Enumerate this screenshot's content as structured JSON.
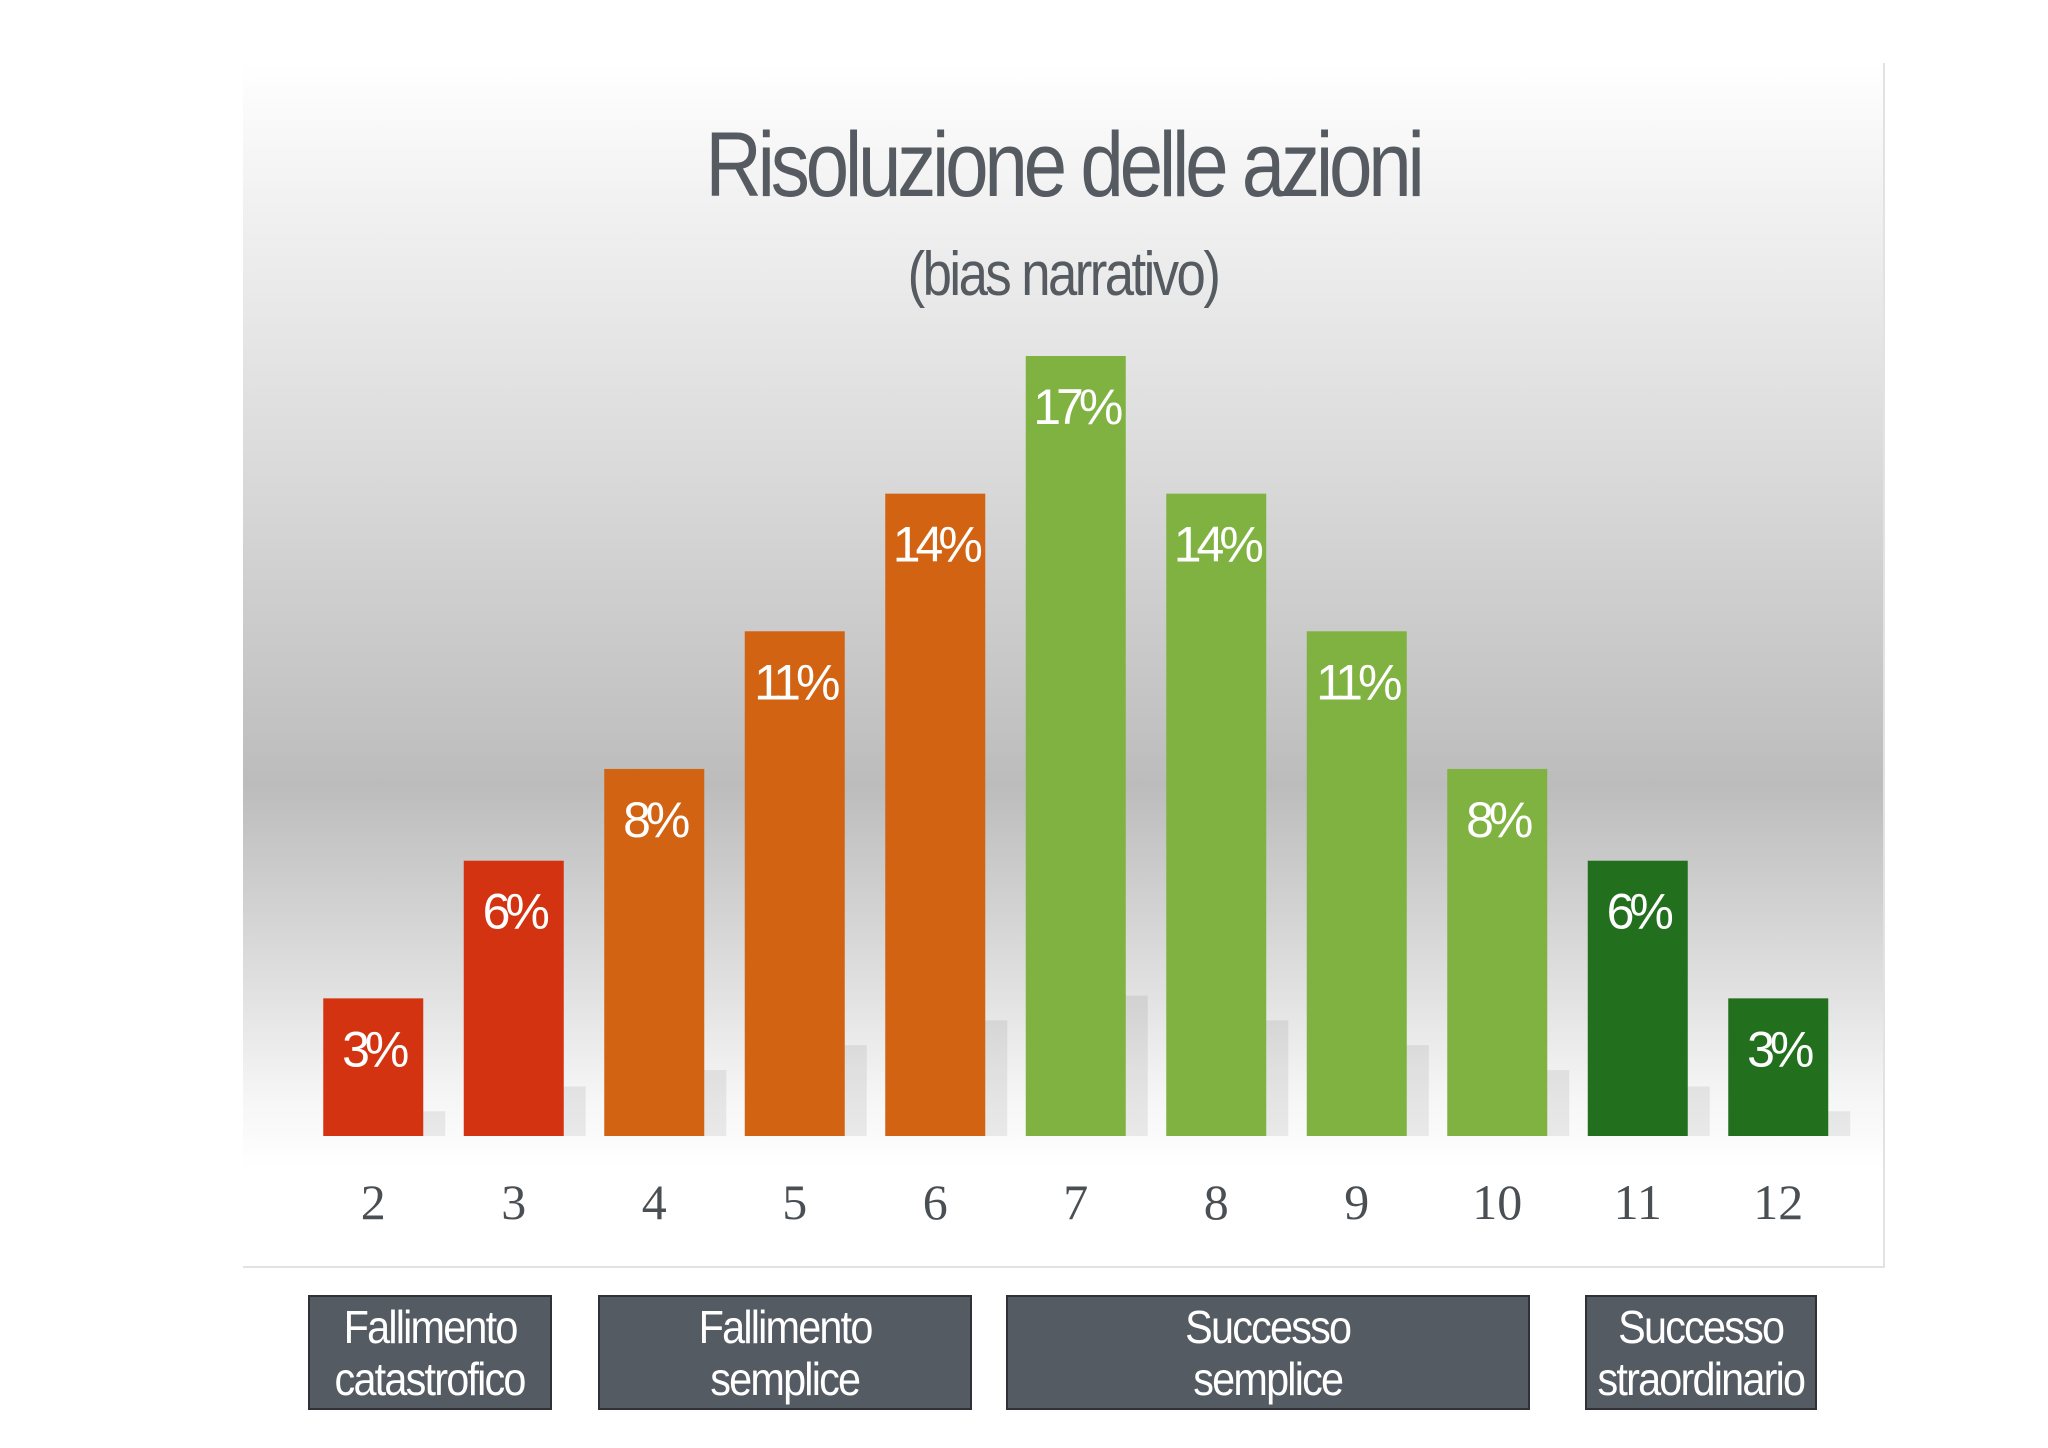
{
  "chart_data": {
    "type": "bar",
    "title": "Risoluzione delle azioni",
    "subtitle": "(bias narrativo)",
    "categories": [
      "2",
      "3",
      "4",
      "5",
      "6",
      "7",
      "8",
      "9",
      "10",
      "11",
      "12"
    ],
    "values": [
      3,
      6,
      8,
      11,
      14,
      17,
      14,
      11,
      8,
      6,
      3
    ],
    "value_labels": [
      "3%",
      "6%",
      "8%",
      "11%",
      "14%",
      "17%",
      "14%",
      "11%",
      "8%",
      "6%",
      "3%"
    ],
    "unit": "%",
    "bar_colors": [
      "#d43311",
      "#d43311",
      "#d26312",
      "#d26312",
      "#d26312",
      "#7fb241",
      "#7fb241",
      "#7fb241",
      "#7fb241",
      "#22701d",
      "#22701d"
    ],
    "ylim": [
      0,
      17
    ],
    "grid": false,
    "legend": "none"
  },
  "outcome_groups": [
    {
      "line1": "Fallimento",
      "line2": "catastrofico",
      "color": "#555b63"
    },
    {
      "line1": "Fallimento",
      "line2": "semplice",
      "color": "#555b63"
    },
    {
      "line1": "Successo",
      "line2": "semplice",
      "color": "#555b63"
    },
    {
      "line1": "Successo",
      "line2": "straordinario",
      "color": "#555b63"
    }
  ]
}
